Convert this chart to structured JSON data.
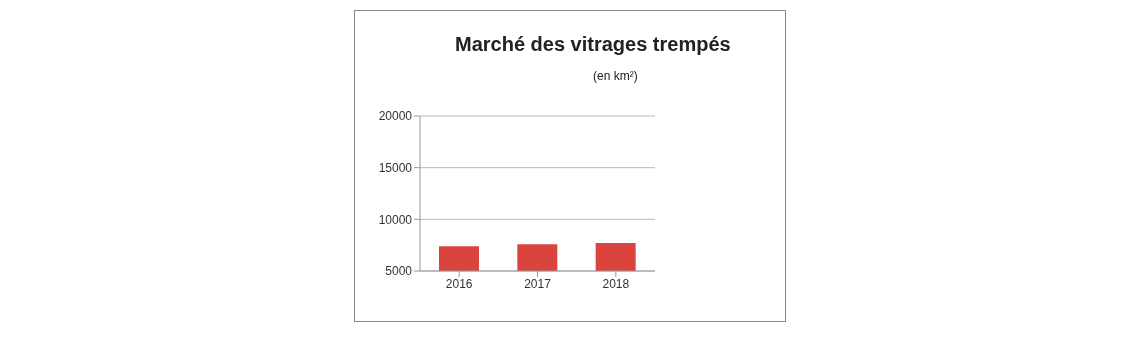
{
  "chart_data": {
    "type": "bar",
    "title": "Marché des vitrages trempés",
    "subtitle": "(en km²)",
    "categories": [
      "2016",
      "2017",
      "2018"
    ],
    "values": [
      7400,
      7600,
      7700
    ],
    "color": "#d9443f",
    "ylim": [
      5000,
      20000
    ],
    "yticks": [
      5000,
      10000,
      15000,
      20000
    ],
    "grid": "y"
  }
}
